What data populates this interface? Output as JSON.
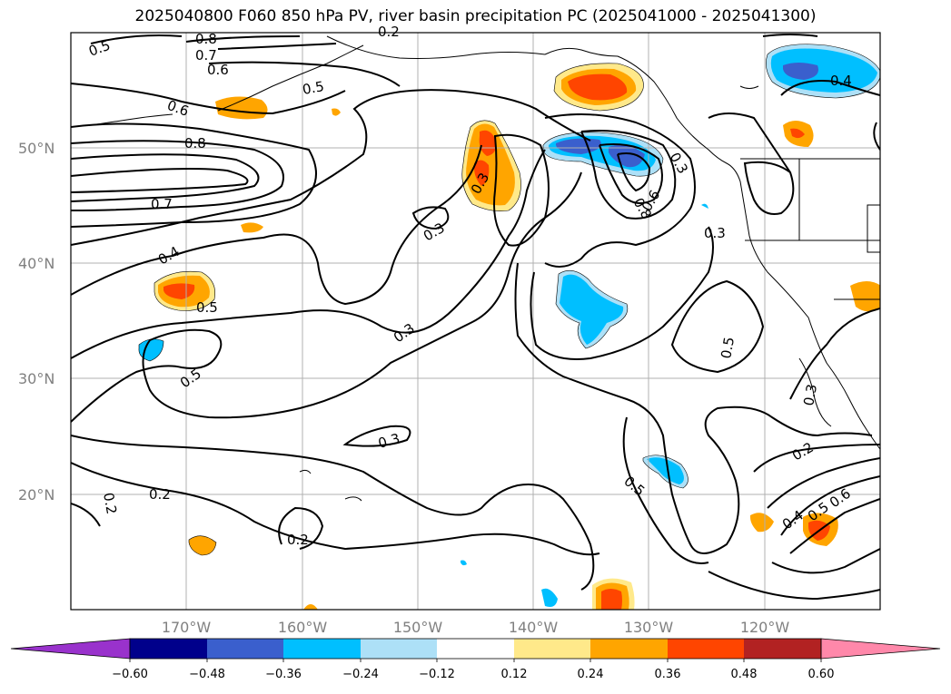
{
  "title": "2025040800 F060 850 hPa PV, river basin precipitation PC (2025041000 - 2025041300)",
  "lat_labels": [
    "50°N",
    "40°N",
    "30°N",
    "20°N"
  ],
  "lon_labels": [
    "170°W",
    "160°W",
    "150°W",
    "140°W",
    "130°W",
    "120°W"
  ],
  "contour_labels": [
    "0.5",
    "0.8",
    "0.7",
    "0.6",
    "0.6",
    "0.5",
    "0.8",
    "0.7",
    "0.4",
    "0.3",
    "0.3",
    "0.3",
    "0.5",
    "0.5",
    "0.3",
    "0.8",
    "0.6",
    "0.3",
    "0.5",
    "0.3",
    "0.2",
    "0.2",
    "0.2",
    "0.2",
    "0.5",
    "0.2",
    "0.4",
    "0.5",
    "0.6",
    "0.3",
    "0.4"
  ],
  "colorbar": {
    "tick_labels": [
      "−0.60",
      "−0.48",
      "−0.36",
      "−0.24",
      "−0.12",
      "0.12",
      "0.24",
      "0.36",
      "0.48",
      "0.60"
    ],
    "colors": [
      "#9932CC",
      "#00008B",
      "#3A5FCD",
      "#00BFFF",
      "#ADE0F7",
      "#FFFFFF",
      "#FFE98A",
      "#FFA500",
      "#FF4500",
      "#B22222",
      "#FF88AA"
    ]
  },
  "colors": {
    "gridline": "#B0B0B0",
    "axis_label": "#808080"
  }
}
